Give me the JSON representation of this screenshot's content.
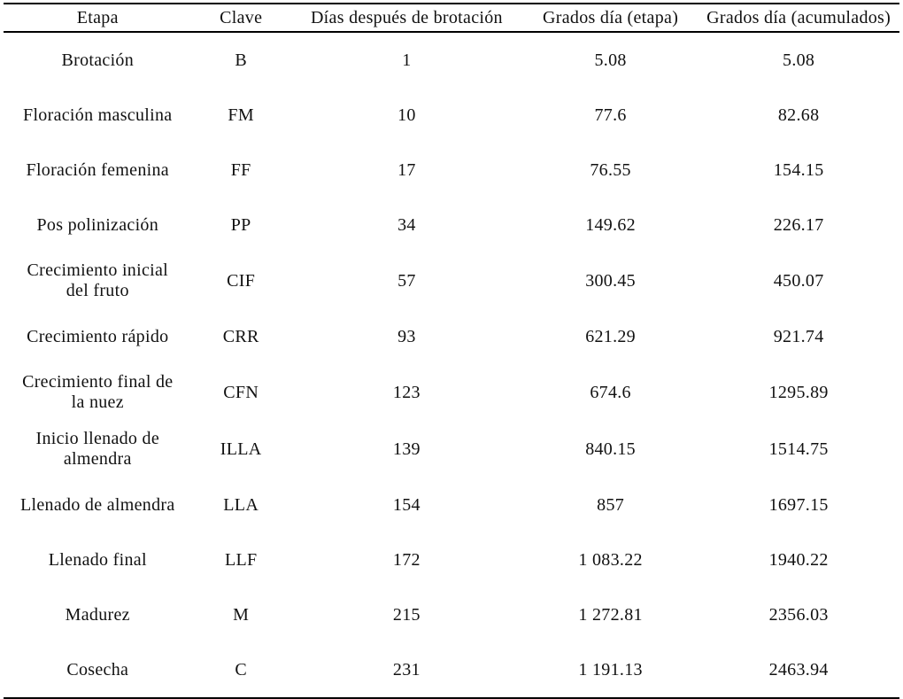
{
  "table": {
    "text_color": "#111111",
    "border_color": "#000000",
    "columns": [
      "Etapa",
      "Clave",
      "Días después de brotación",
      "Grados día (etapa)",
      "Grados día (acumulados)"
    ],
    "rows": [
      {
        "etapa": "Brotación",
        "clave": "B",
        "dias": "1",
        "gd_etapa": "5.08",
        "gd_acumulados": "5.08"
      },
      {
        "etapa": "Floración masculina",
        "clave": "FM",
        "dias": "10",
        "gd_etapa": "77.6",
        "gd_acumulados": "82.68"
      },
      {
        "etapa": "Floración femenina",
        "clave": "FF",
        "dias": "17",
        "gd_etapa": "76.55",
        "gd_acumulados": "154.15"
      },
      {
        "etapa": "Pos polinización",
        "clave": "PP",
        "dias": "34",
        "gd_etapa": "149.62",
        "gd_acumulados": "226.17"
      },
      {
        "etapa": "Crecimiento inicial\ndel fruto",
        "clave": "CIF",
        "dias": "57",
        "gd_etapa": "300.45",
        "gd_acumulados": "450.07"
      },
      {
        "etapa": "Crecimiento rápido",
        "clave": "CRR",
        "dias": "93",
        "gd_etapa": "621.29",
        "gd_acumulados": "921.74"
      },
      {
        "etapa": "Crecimiento final de\nla nuez",
        "clave": "CFN",
        "dias": "123",
        "gd_etapa": "674.6",
        "gd_acumulados": "1295.89"
      },
      {
        "etapa": "Inicio llenado de\nalmendra",
        "clave": "ILLA",
        "dias": "139",
        "gd_etapa": "840.15",
        "gd_acumulados": "1514.75"
      },
      {
        "etapa": "Llenado de almendra",
        "clave": "LLA",
        "dias": "154",
        "gd_etapa": "857",
        "gd_acumulados": "1697.15"
      },
      {
        "etapa": "Llenado final",
        "clave": "LLF",
        "dias": "172",
        "gd_etapa": "1 083.22",
        "gd_acumulados": "1940.22"
      },
      {
        "etapa": "Madurez",
        "clave": "M",
        "dias": "215",
        "gd_etapa": "1 272.81",
        "gd_acumulados": "2356.03"
      },
      {
        "etapa": "Cosecha",
        "clave": "C",
        "dias": "231",
        "gd_etapa": "1 191.13",
        "gd_acumulados": "2463.94"
      }
    ]
  }
}
